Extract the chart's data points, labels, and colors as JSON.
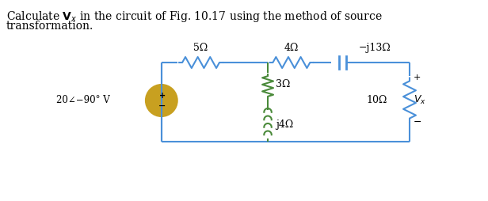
{
  "title_text": "Calculate $\\mathbf{V}_x$ in the circuit of Fig. 10.17 using the method of source",
  "title_line2": "transformation.",
  "bg_color": "#ffffff",
  "circuit_color": "#4a90d9",
  "resistor_color": "#4a8a3a",
  "source_color": "#c8a020",
  "label_5ohm": "5Ω",
  "label_4ohm": "4Ω",
  "label_j13ohm": "−j13Ω",
  "label_3ohm": "3Ω",
  "label_j4ohm": "j4Ω",
  "label_10ohm": "10Ω",
  "label_vx": "V_x",
  "label_source": "20∠−90° V",
  "font_size": 9,
  "title_font_size": 10
}
